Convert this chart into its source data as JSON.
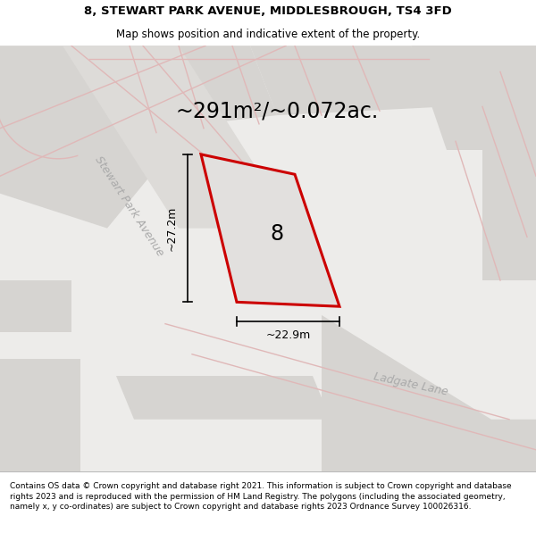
{
  "title": "8, STEWART PARK AVENUE, MIDDLESBROUGH, TS4 3FD",
  "subtitle": "Map shows position and indicative extent of the property.",
  "area_text": "~291m²/~0.072ac.",
  "plot_number": "8",
  "dim_width": "~22.9m",
  "dim_height": "~27.2m",
  "street_label_1": "Stewart Park Avenue",
  "street_label_2": "Ladgate Lane",
  "footer": "Contains OS data © Crown copyright and database right 2021. This information is subject to Crown copyright and database rights 2023 and is reproduced with the permission of HM Land Registry. The polygons (including the associated geometry, namely x, y co-ordinates) are subject to Crown copyright and database rights 2023 Ordnance Survey 100026316.",
  "bg_color": "#edecea",
  "plot_fill": "#e2e0de",
  "plot_edge": "#cc0000",
  "road_color": "#e0b8b8",
  "block_color": "#d6d4d1",
  "title_color": "#000000",
  "footer_color": "#000000",
  "title_fontsize": 9.5,
  "subtitle_fontsize": 8.5,
  "area_fontsize": 17,
  "label_fontsize": 9,
  "footer_fontsize": 6.5
}
